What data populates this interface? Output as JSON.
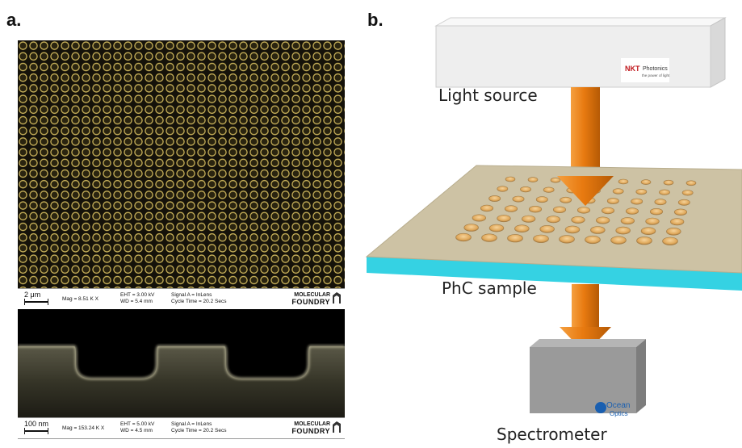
{
  "panel_a_label": "a.",
  "panel_b_label": "b.",
  "sem_top_bar": {
    "scale": "2 μm",
    "mag": "Mag =  8.51 K X",
    "eht": "EHT = 3.00 kV",
    "wd": "WD = 5.4 mm",
    "signal": "Signal A = InLens",
    "cycle": "Cycle Time = 20.2 Secs",
    "logo_line1": "MOLECULAR",
    "logo_line2": "FOUNDRY"
  },
  "sem_bottom_bar": {
    "scale": "100 nm",
    "mag": "Mag = 153.24 K X",
    "eht": "EHT = 5.00 kV",
    "wd": "WD = 4.5 mm",
    "signal": "Signal A = InLens",
    "cycle": "Cycle Time = 20.2 Secs",
    "logo_line1": "MOLECULAR",
    "logo_line2": "FOUNDRY"
  },
  "diagram": {
    "light_source_label": "Light source",
    "sample_label": "PhC sample",
    "spectrometer_label": "Spectrometer",
    "source_brand": "NKT",
    "source_brand_sub": "Photonics",
    "source_brand_tag": "the power of light",
    "spectrometer_brand_1": "Ocean",
    "spectrometer_brand_2": "Optics"
  },
  "colors": {
    "beam": "#e87a10",
    "sample_top": "#cbbfa0",
    "substrate": "#33d6e6",
    "box": "#efefef",
    "spectrometer": "#9a9a9a"
  }
}
